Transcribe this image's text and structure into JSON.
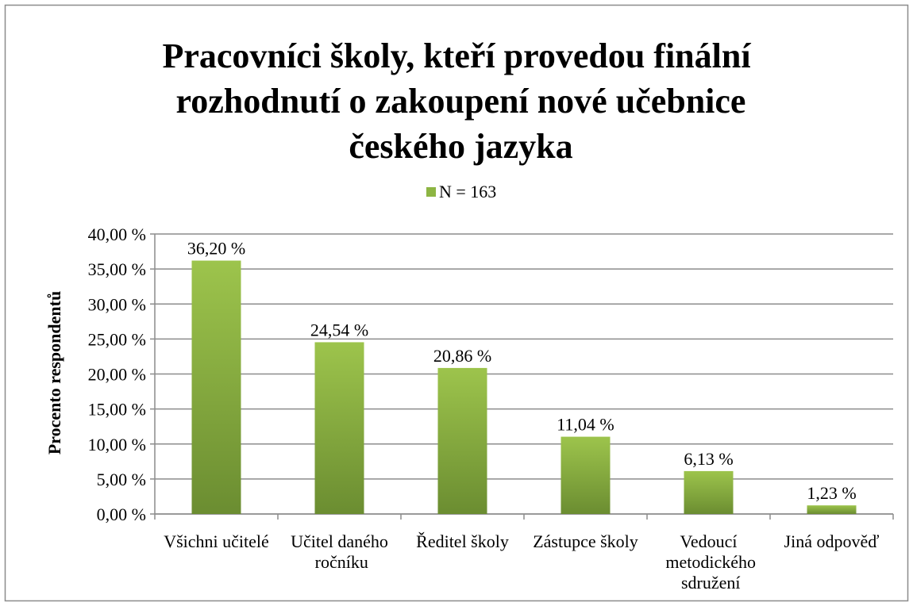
{
  "chart_data": {
    "type": "bar",
    "title": "Pracovníci školy, kteří provedou finální rozhodnutí o zakoupení nové učebnice českého jazyka",
    "y_label": "Procento respondentů",
    "categories": [
      "Všichni učitelé",
      "Učitel daného ročníku",
      "Ředitel školy",
      "Zástupce školy",
      "Vedoucí metodického sdružení",
      "Jiná odpověď"
    ],
    "series": [
      {
        "name": "N = 163",
        "color": "#8db543",
        "values": [
          36.2,
          24.54,
          20.86,
          11.04,
          6.13,
          1.23
        ],
        "value_labels": [
          "36,20 %",
          "24,54 %",
          "20,86 %",
          "11,04 %",
          "6,13 %",
          "1,23 %"
        ]
      }
    ],
    "ylim": [
      0,
      40
    ],
    "yticks": [
      {
        "value": 0,
        "label": "0,00 %"
      },
      {
        "value": 5,
        "label": "5,00 %"
      },
      {
        "value": 10,
        "label": "10,00 %"
      },
      {
        "value": 15,
        "label": "15,00 %"
      },
      {
        "value": 20,
        "label": "20,00 %"
      },
      {
        "value": 25,
        "label": "25,00 %"
      },
      {
        "value": 30,
        "label": "30,00 %"
      },
      {
        "value": 35,
        "label": "35,00 %"
      },
      {
        "value": 40,
        "label": "40,00 %"
      }
    ],
    "grid": true,
    "legend": "top"
  }
}
